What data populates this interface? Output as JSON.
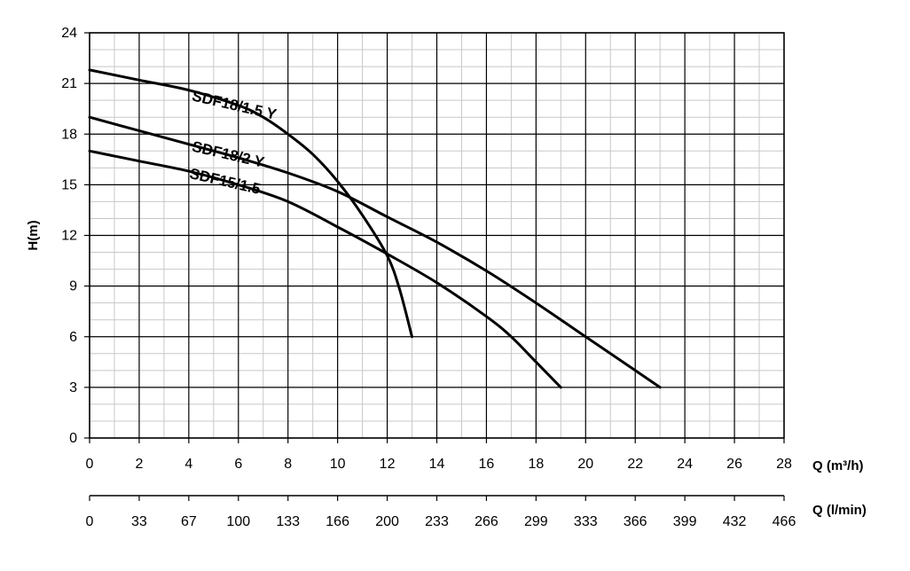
{
  "chart_data": {
    "type": "line",
    "title": "",
    "ylabel": "H(m)",
    "xlabel": "Q (m³/h)",
    "x2label": "Q (l/min)",
    "xlim": [
      0,
      28
    ],
    "ylim": [
      0,
      24
    ],
    "x_ticks": [
      "0",
      "2",
      "4",
      "6",
      "8",
      "10",
      "12",
      "14",
      "16",
      "18",
      "20",
      "22",
      "24",
      "26",
      "28"
    ],
    "x2_ticks": [
      "0",
      "33",
      "67",
      "100",
      "133",
      "166",
      "200",
      "233",
      "266",
      "299",
      "333",
      "366",
      "399",
      "432",
      "466"
    ],
    "y_ticks": [
      "0",
      "3",
      "6",
      "9",
      "12",
      "15",
      "18",
      "21",
      "24"
    ],
    "grid": true,
    "series": [
      {
        "name": "SDF18/1.5 Y",
        "x": [
          0,
          2,
          4,
          6,
          7,
          8,
          9,
          10,
          11,
          12,
          12.5,
          13
        ],
        "y": [
          21.8,
          21.2,
          20.6,
          19.7,
          19.0,
          18.0,
          16.8,
          15.2,
          13.2,
          10.8,
          8.8,
          6.0
        ]
      },
      {
        "name": "SDF18/2 Y",
        "x": [
          0,
          2,
          4,
          6,
          8,
          10,
          12,
          14,
          16,
          18,
          20,
          22,
          23
        ],
        "y": [
          19.0,
          18.2,
          17.4,
          16.6,
          15.7,
          14.6,
          13.1,
          11.6,
          9.9,
          8.0,
          6.0,
          4.0,
          3.0
        ]
      },
      {
        "name": "SDF15/1.5",
        "x": [
          0,
          2,
          4,
          6,
          8,
          10,
          12,
          14,
          16,
          17,
          18,
          19
        ],
        "y": [
          17.0,
          16.4,
          15.8,
          15.0,
          14.0,
          12.5,
          10.9,
          9.2,
          7.2,
          6.0,
          4.5,
          3.0
        ]
      }
    ],
    "curve_labels": [
      {
        "text": "SDF18/1.5 Y",
        "x": 4.1,
        "y": 20.0,
        "angle": 13
      },
      {
        "text": "SDF18/2 Y",
        "x": 4.1,
        "y": 17.0,
        "angle": 13
      },
      {
        "text": "SDF15/1.5",
        "x": 4.0,
        "y": 15.4,
        "angle": 13
      }
    ]
  }
}
